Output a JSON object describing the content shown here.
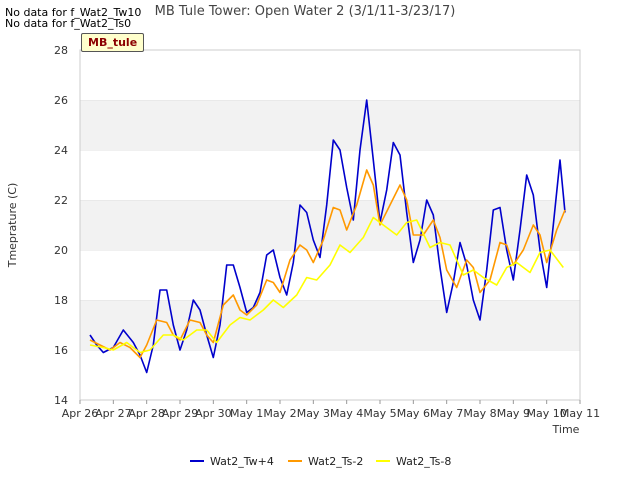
{
  "no_data_messages": [
    "No data for f_Wat2_Tw10",
    "No data for f_Wat2_Ts0"
  ],
  "site_tag": "MB_tule",
  "chart_data": {
    "type": "line",
    "title": "MB Tule Tower: Open Water 2 (3/1/11-3/23/17)",
    "xlabel": "Time",
    "ylabel": "Tmeprature (C)",
    "xlim": [
      0,
      15
    ],
    "ylim": [
      14,
      28
    ],
    "yticks": [
      14,
      16,
      18,
      20,
      22,
      24,
      26,
      28
    ],
    "xtick_positions": [
      0,
      1,
      2,
      3,
      4,
      5,
      6,
      7,
      8,
      9,
      10,
      11,
      12,
      13,
      14,
      15
    ],
    "xtick_labels": [
      "Apr 26",
      "Apr 27",
      "Apr 28",
      "Apr 29",
      "Apr 30",
      "May 1",
      "May 2",
      "May 3",
      "May 4",
      "May 5",
      "May 6",
      "May 7",
      "May 8",
      "May 9",
      "May 10",
      "May 11"
    ],
    "grid": true,
    "legend_position": "bottom",
    "series": [
      {
        "name": "Wat2_Tw+4",
        "color": "#0000cc",
        "x": [
          0.3,
          0.5,
          0.7,
          1.0,
          1.3,
          1.6,
          1.8,
          2.0,
          2.2,
          2.4,
          2.6,
          2.8,
          3.0,
          3.2,
          3.4,
          3.6,
          3.8,
          4.0,
          4.2,
          4.4,
          4.6,
          4.8,
          5.0,
          5.2,
          5.4,
          5.6,
          5.8,
          6.0,
          6.2,
          6.4,
          6.6,
          6.8,
          7.0,
          7.2,
          7.4,
          7.6,
          7.8,
          8.0,
          8.2,
          8.4,
          8.6,
          8.8,
          9.0,
          9.2,
          9.4,
          9.6,
          9.8,
          10.0,
          10.2,
          10.4,
          10.6,
          10.8,
          11.0,
          11.2,
          11.4,
          11.6,
          11.8,
          12.0,
          12.2,
          12.4,
          12.6,
          12.8,
          13.0,
          13.2,
          13.4,
          13.6,
          13.8,
          14.0,
          14.2,
          14.4,
          14.55
        ],
        "y": [
          16.6,
          16.2,
          15.9,
          16.1,
          16.8,
          16.3,
          15.8,
          15.1,
          16.2,
          18.4,
          18.4,
          17.0,
          16.0,
          16.8,
          18.0,
          17.6,
          16.6,
          15.7,
          17.0,
          19.4,
          19.4,
          18.5,
          17.5,
          17.7,
          18.3,
          19.8,
          20.0,
          18.9,
          18.2,
          19.5,
          21.8,
          21.5,
          20.4,
          19.7,
          21.8,
          24.4,
          24.0,
          22.5,
          21.2,
          24.0,
          26.0,
          23.6,
          21.1,
          22.4,
          24.3,
          23.8,
          21.5,
          19.5,
          20.4,
          22.0,
          21.4,
          19.3,
          17.5,
          18.7,
          20.3,
          19.4,
          18.0,
          17.2,
          19.2,
          21.6,
          21.7,
          20.0,
          18.8,
          20.8,
          23.0,
          22.2,
          20.0,
          18.5,
          21.0,
          23.6,
          21.5
        ]
      },
      {
        "name": "Wat2_Ts-2",
        "color": "#ff9900",
        "x": [
          0.3,
          0.6,
          0.9,
          1.2,
          1.5,
          1.8,
          2.0,
          2.3,
          2.6,
          2.8,
          3.0,
          3.3,
          3.6,
          3.8,
          4.0,
          4.3,
          4.6,
          4.8,
          5.0,
          5.3,
          5.6,
          5.8,
          6.0,
          6.3,
          6.6,
          6.8,
          7.0,
          7.3,
          7.6,
          7.8,
          8.0,
          8.3,
          8.6,
          8.8,
          9.0,
          9.3,
          9.6,
          9.8,
          10.0,
          10.3,
          10.6,
          10.8,
          11.0,
          11.3,
          11.6,
          11.8,
          12.0,
          12.3,
          12.6,
          12.8,
          13.0,
          13.3,
          13.6,
          13.8,
          14.0,
          14.3,
          14.55
        ],
        "y": [
          16.4,
          16.2,
          16.0,
          16.3,
          16.1,
          15.7,
          16.2,
          17.2,
          17.1,
          16.6,
          16.4,
          17.2,
          17.1,
          16.6,
          16.3,
          17.8,
          18.2,
          17.6,
          17.4,
          17.8,
          18.8,
          18.7,
          18.3,
          19.6,
          20.2,
          20.0,
          19.5,
          20.4,
          21.7,
          21.6,
          20.8,
          21.8,
          23.2,
          22.6,
          21.0,
          21.8,
          22.6,
          22.0,
          20.6,
          20.6,
          21.2,
          20.5,
          19.2,
          18.5,
          19.6,
          19.3,
          18.3,
          18.8,
          20.3,
          20.2,
          19.4,
          20.0,
          21.0,
          20.6,
          19.5,
          20.8,
          21.6
        ]
      },
      {
        "name": "Wat2_Ts-8",
        "color": "#ffff00",
        "x": [
          0.3,
          0.7,
          1.0,
          1.4,
          1.8,
          2.1,
          2.5,
          2.8,
          3.1,
          3.5,
          3.8,
          4.1,
          4.5,
          4.8,
          5.1,
          5.5,
          5.8,
          6.1,
          6.5,
          6.8,
          7.1,
          7.5,
          7.8,
          8.1,
          8.5,
          8.8,
          9.1,
          9.5,
          9.8,
          10.1,
          10.5,
          10.8,
          11.1,
          11.5,
          11.8,
          12.1,
          12.5,
          12.8,
          13.1,
          13.5,
          13.8,
          14.1,
          14.5
        ],
        "y": [
          16.2,
          16.1,
          16.0,
          16.3,
          15.9,
          16.0,
          16.6,
          16.6,
          16.4,
          16.8,
          16.8,
          16.3,
          17.0,
          17.3,
          17.2,
          17.6,
          18.0,
          17.7,
          18.2,
          18.9,
          18.8,
          19.4,
          20.2,
          19.9,
          20.5,
          21.3,
          21.0,
          20.6,
          21.1,
          21.2,
          20.1,
          20.3,
          20.2,
          19.0,
          19.2,
          18.9,
          18.6,
          19.3,
          19.5,
          19.1,
          19.9,
          20.0,
          19.3
        ]
      }
    ]
  }
}
